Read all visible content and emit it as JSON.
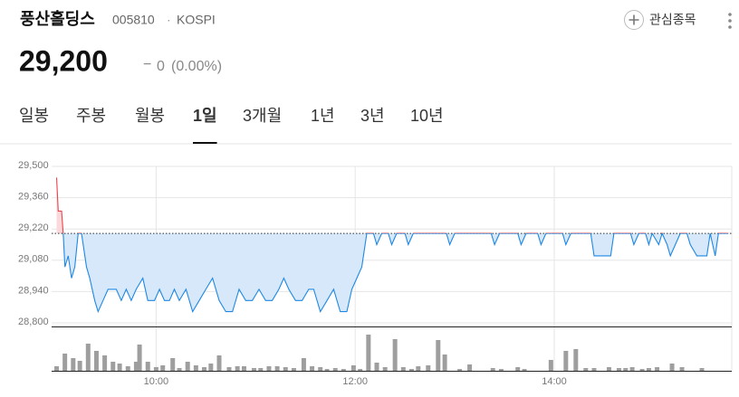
{
  "header": {
    "name": "풍산홀딩스",
    "code": "005810",
    "separator": "·",
    "market": "KOSPI",
    "watch_button": "관심종목",
    "price": "29,200",
    "change_sign": "−",
    "change": "0",
    "change_pct": "(0.00%)"
  },
  "tabs": [
    "일봉",
    "주봉",
    "월봉",
    "1일",
    "3개월",
    "1년",
    "3년",
    "10년"
  ],
  "active_tab": 3,
  "chart_data": {
    "type": "line",
    "x": [
      540,
      541,
      543,
      544,
      545,
      547,
      549,
      551,
      553,
      555,
      558,
      560,
      563,
      565,
      568,
      571,
      576,
      579,
      582,
      585,
      588,
      592,
      595,
      599,
      602,
      605,
      608,
      611,
      614,
      618,
      622,
      626,
      630,
      634,
      638,
      642,
      646,
      650,
      654,
      658,
      662,
      666,
      670,
      674,
      677,
      680,
      684,
      688,
      692,
      695,
      699,
      703,
      707,
      711,
      715,
      718,
      721,
      724,
      727,
      731,
      733,
      736,
      740,
      742,
      745,
      750,
      752,
      755,
      775,
      777,
      780,
      802,
      804,
      807,
      818,
      820,
      823,
      830,
      832,
      835,
      845,
      847,
      850,
      862,
      864,
      874,
      876,
      886,
      888,
      891,
      895,
      897,
      899,
      903,
      905,
      908,
      910,
      913,
      916,
      920,
      922,
      926,
      932,
      934,
      937,
      939,
      945
    ],
    "values": [
      29450,
      29300,
      29300,
      29200,
      29050,
      29100,
      29000,
      29050,
      29200,
      29200,
      29050,
      29000,
      28900,
      28850,
      28900,
      28950,
      28950,
      28900,
      28950,
      28900,
      28950,
      29000,
      28900,
      28900,
      28950,
      28900,
      28900,
      28950,
      28900,
      28950,
      28850,
      28900,
      28950,
      29000,
      28900,
      28850,
      28850,
      28950,
      28900,
      28900,
      28950,
      28900,
      28900,
      28950,
      29000,
      28950,
      28900,
      28900,
      28950,
      28950,
      28850,
      28900,
      28950,
      28850,
      28850,
      28950,
      29000,
      29050,
      29200,
      29200,
      29150,
      29200,
      29200,
      29150,
      29200,
      29200,
      29150,
      29200,
      29200,
      29150,
      29200,
      29200,
      29150,
      29200,
      29200,
      29150,
      29200,
      29200,
      29150,
      29200,
      29200,
      29150,
      29200,
      29200,
      29100,
      29100,
      29200,
      29200,
      29150,
      29200,
      29200,
      29150,
      29200,
      29150,
      29200,
      29150,
      29100,
      29150,
      29200,
      29200,
      29150,
      29100,
      29100,
      29200,
      29100,
      29200,
      29200
    ],
    "prev_close": 29200,
    "up_color": "#e8444c",
    "down_color": "#1e88e5",
    "up_fill": "#fbd9db",
    "down_fill": "#d6e8fa",
    "xlim": [
      537,
      947
    ],
    "ylim": [
      28800,
      29500
    ],
    "yticks": [
      {
        "value": 29500,
        "label": "29,500"
      },
      {
        "value": 29360,
        "label": "29,360"
      },
      {
        "value": 29220,
        "label": "29,220"
      },
      {
        "value": 29080,
        "label": "29,080"
      },
      {
        "value": 28940,
        "label": "28,940"
      },
      {
        "value": 28800,
        "label": "28,800"
      }
    ],
    "xticks": [
      {
        "value": 600,
        "label": "10:00"
      },
      {
        "value": 720,
        "label": "12:00"
      },
      {
        "value": 840,
        "label": "14:00"
      }
    ],
    "grid": true,
    "volume": {
      "color": "#9e9e9e",
      "vlim": [
        0,
        47
      ],
      "x": [
        540,
        545,
        550,
        554,
        559,
        564,
        569,
        574,
        578,
        583,
        588,
        590,
        595,
        600,
        604,
        610,
        614,
        619,
        624,
        629,
        633,
        638,
        644,
        649,
        653,
        659,
        663,
        668,
        673,
        678,
        683,
        689,
        694,
        699,
        703,
        708,
        713,
        719,
        723,
        728,
        733,
        738,
        744,
        749,
        754,
        758,
        764,
        770,
        774,
        783,
        789,
        803,
        808,
        818,
        822,
        838,
        847,
        853,
        859,
        864,
        873,
        879,
        883,
        887,
        893,
        897,
        902,
        911,
        917,
        929
      ],
      "values": [
        5,
        19,
        14,
        11,
        30,
        22,
        17,
        10,
        8,
        5,
        10,
        29,
        10,
        4,
        6,
        14,
        3,
        10,
        6,
        4,
        8,
        17,
        4,
        5,
        5,
        3,
        3,
        5,
        5,
        4,
        3,
        14,
        5,
        4,
        2,
        3,
        2,
        6,
        2,
        40,
        9,
        4,
        35,
        4,
        2,
        5,
        6,
        34,
        18,
        2,
        7,
        3,
        2,
        4,
        2,
        12,
        22,
        24,
        3,
        3,
        4,
        3,
        3,
        4,
        2,
        3,
        4,
        8,
        4,
        3
      ]
    }
  }
}
